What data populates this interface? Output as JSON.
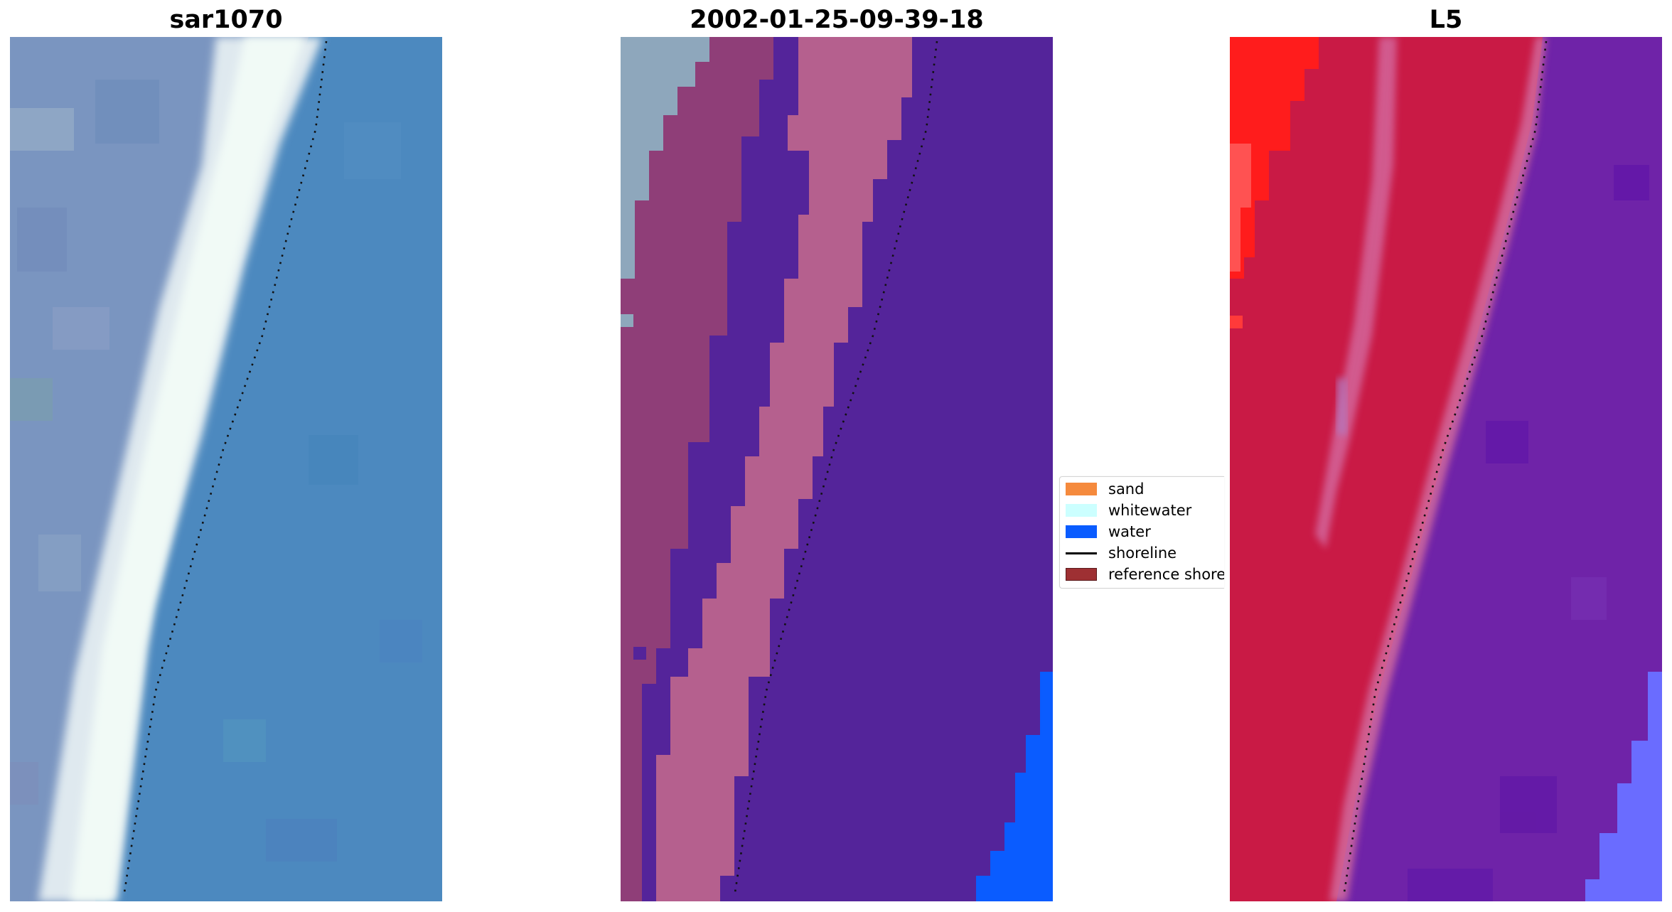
{
  "panels": [
    {
      "title": "sar1070",
      "kind": "rgb-image"
    },
    {
      "title": "2002-01-25-09-39-18",
      "kind": "classification"
    },
    {
      "title": "L5",
      "kind": "probability-composite"
    }
  ],
  "legend": {
    "items": [
      {
        "label": "sand",
        "color": "#f58a3d",
        "type": "patch"
      },
      {
        "label": "whitewater",
        "color": "#ccffff",
        "type": "patch"
      },
      {
        "label": "water",
        "color": "#0a5cff",
        "type": "patch"
      },
      {
        "label": "shoreline",
        "color": "#000000",
        "type": "line"
      },
      {
        "label": "reference shoreline",
        "color": "#9e3033",
        "type": "patch"
      }
    ]
  },
  "colors": {
    "sar_water": "#4a88bf",
    "sar_land": "#7f9ac2",
    "sar_whitewater": "#eef8f5",
    "class_land": "#8f3e78",
    "class_band": "#b5608e",
    "class_purple": "#54249a",
    "class_water": "#0a5cff",
    "class_grey": "#8ea7bc",
    "l5_red": "#c91a45",
    "l5_bright": "#ff1616",
    "l5_purple": "#6f23a8",
    "l5_blue": "#6a6cff",
    "l5_pink": "#d26a9e",
    "shoreline_dots": "#111111"
  }
}
